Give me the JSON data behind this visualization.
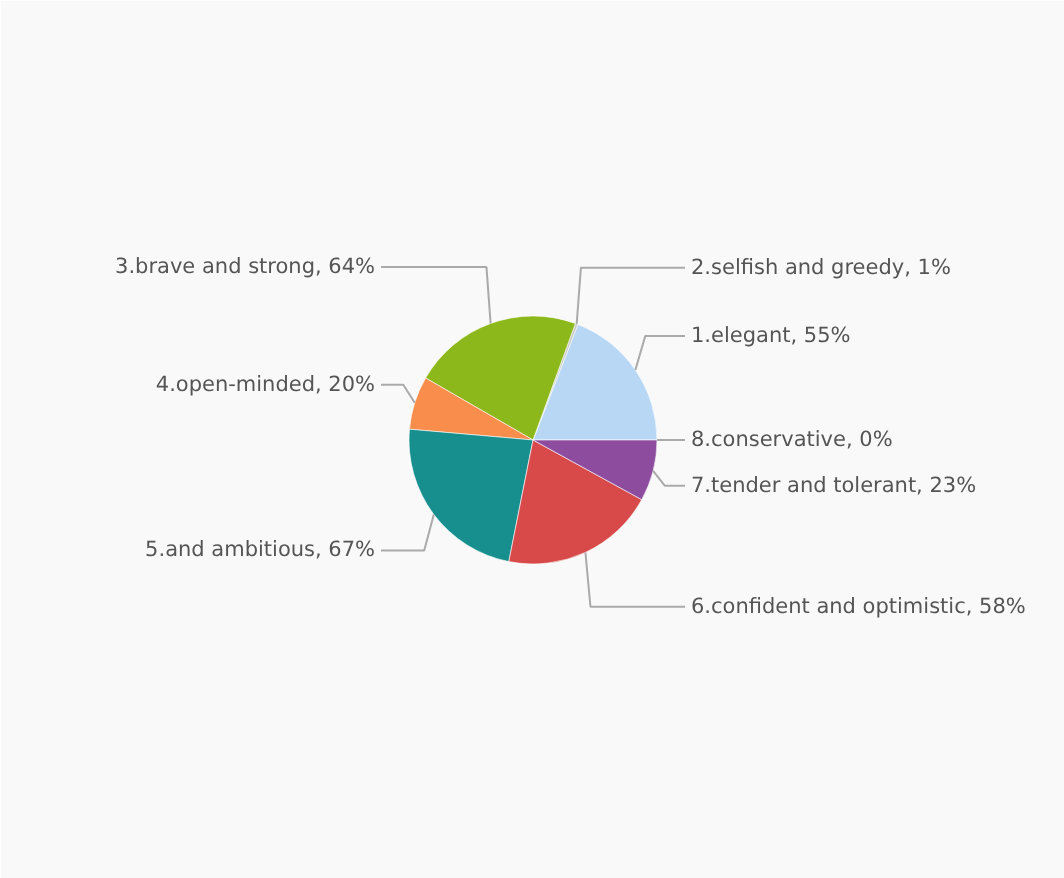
{
  "chart_data": {
    "type": "pie",
    "categories": [
      "1.elegant",
      "2.selfish and greedy",
      "3.brave and strong",
      "4.open-minded",
      "5.and ambitious",
      "6.confident and optimistic",
      "7.tender and tolerant",
      "8.conservative"
    ],
    "values": [
      55,
      1,
      64,
      20,
      67,
      58,
      23,
      0
    ],
    "colors": [
      "#b7d7f4",
      "#c8c8c8",
      "#8cb81c",
      "#f98d4b",
      "#178f8e",
      "#d84a4a",
      "#8d4c9d",
      "#4a6fb5"
    ],
    "value_labels": [
      "55%",
      "1%",
      "64%",
      "20%",
      "67%",
      "58%",
      "23%",
      "0%"
    ]
  }
}
